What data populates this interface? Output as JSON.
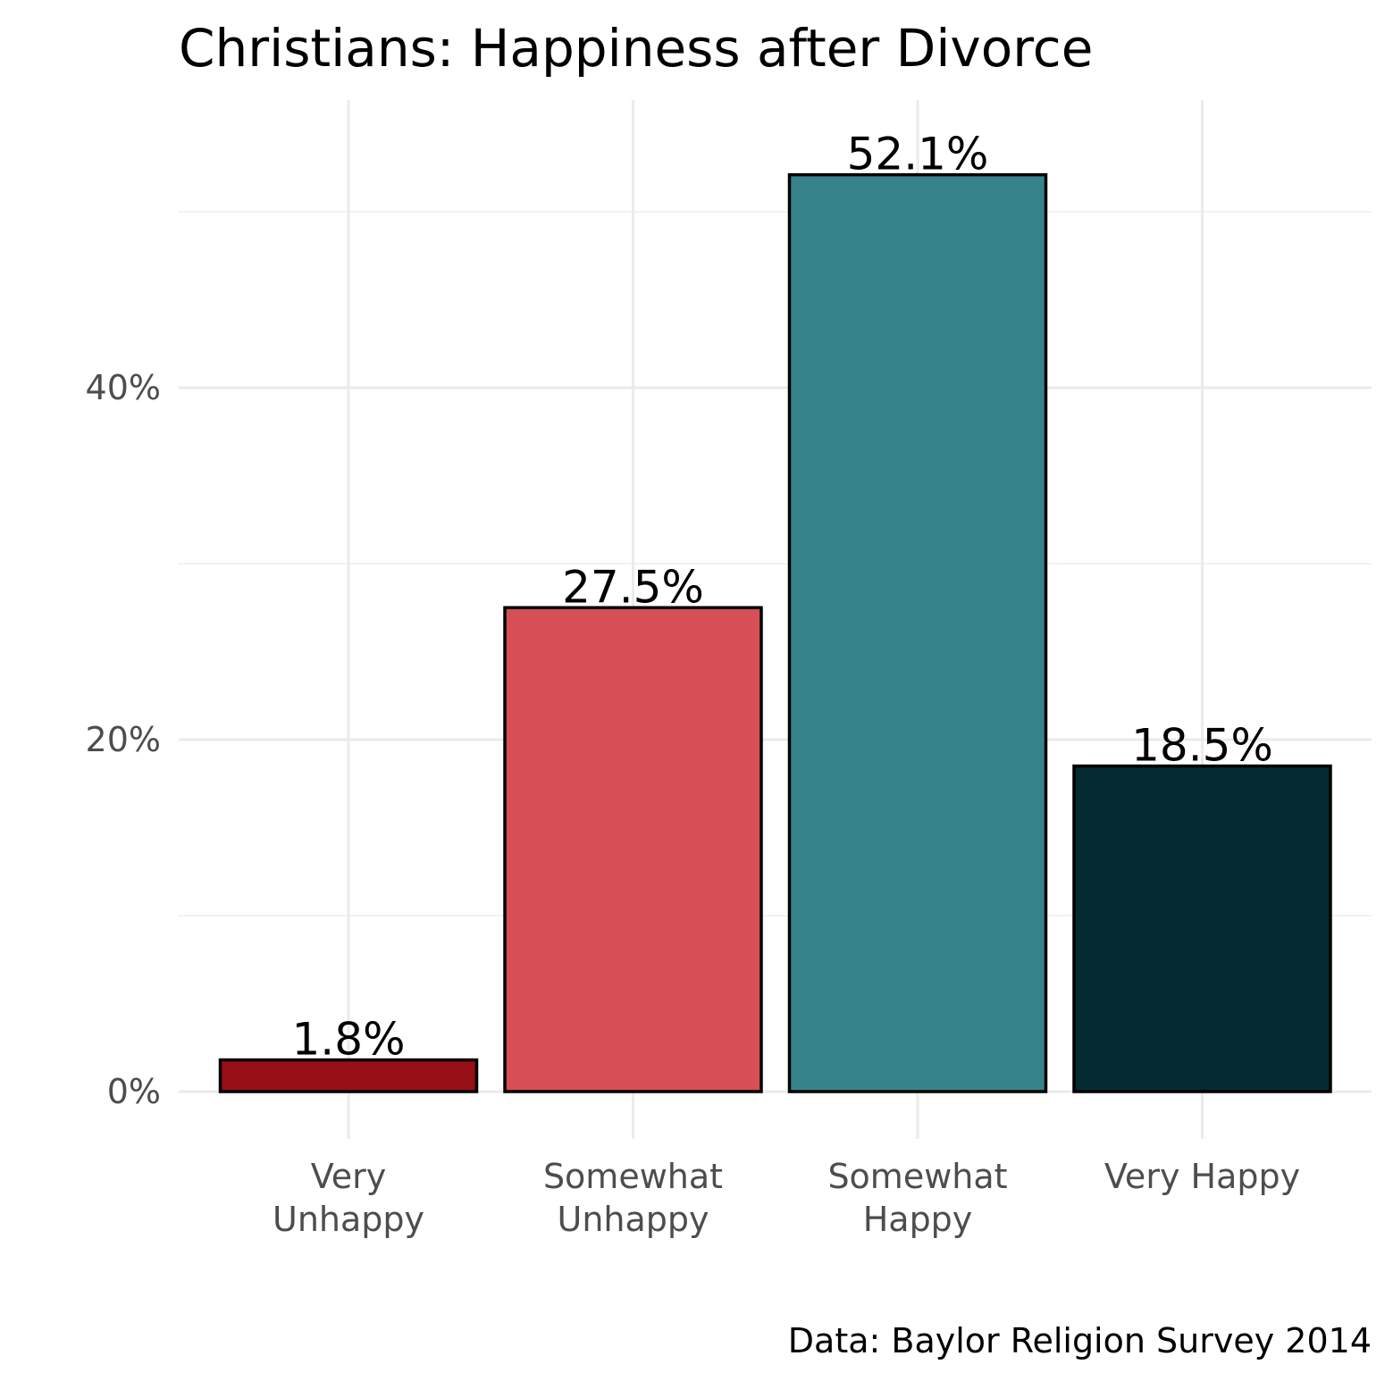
{
  "chart_data": {
    "type": "bar",
    "title": "Christians: Happiness after Divorce",
    "caption": "Data: Baylor Religion Survey 2014",
    "xlabel": "",
    "ylabel": "",
    "categories": [
      [
        "Very",
        "Unhappy"
      ],
      [
        "Somewhat",
        "Unhappy"
      ],
      [
        "Somewhat",
        "Happy"
      ],
      [
        "Very Happy"
      ]
    ],
    "values": [
      1.8,
      27.5,
      52.1,
      18.5
    ],
    "value_labels": [
      "1.8%",
      "27.5%",
      "52.1%",
      "18.5%"
    ],
    "colors": [
      "#970f17",
      "#d64f57",
      "#37838c",
      "#042b32"
    ],
    "ylim": [
      0,
      55
    ],
    "yticks": [
      0,
      20,
      40
    ],
    "ytick_labels": [
      "0%",
      "20%",
      "40%"
    ],
    "minor_yticks": [
      10,
      30,
      50
    ],
    "grid": true,
    "legend": "none"
  }
}
